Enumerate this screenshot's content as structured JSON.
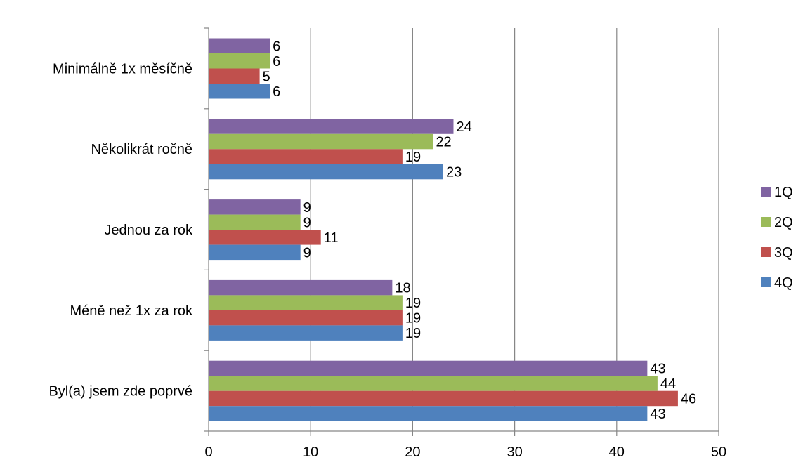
{
  "chart_data": {
    "type": "bar",
    "orientation": "horizontal",
    "categories": [
      "Minimálně 1x měsíčně",
      "Několikrát ročně",
      "Jednou za rok",
      "Méně než 1x za rok",
      "Byl(a) jsem zde poprvé"
    ],
    "series": [
      {
        "name": "1Q",
        "color": "#8064a2",
        "values": [
          6,
          24,
          9,
          18,
          43
        ]
      },
      {
        "name": "2Q",
        "color": "#9bbb59",
        "values": [
          6,
          22,
          9,
          19,
          44
        ]
      },
      {
        "name": "3Q",
        "color": "#c0504d",
        "values": [
          5,
          19,
          11,
          19,
          46
        ]
      },
      {
        "name": "4Q",
        "color": "#4f81bd",
        "values": [
          6,
          23,
          9,
          19,
          43
        ]
      }
    ],
    "xlim": [
      0,
      50
    ],
    "xticks": [
      "0",
      "10",
      "20",
      "30",
      "40",
      "50"
    ],
    "grid": true,
    "legend": "right",
    "data_labels": true
  }
}
